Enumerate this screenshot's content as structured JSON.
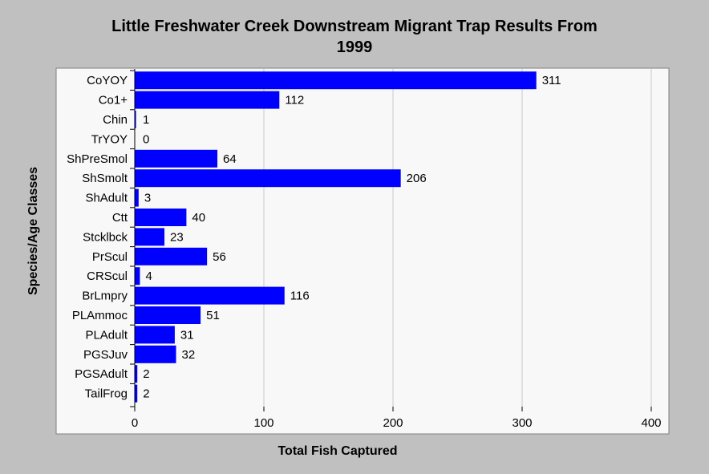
{
  "chart_data": {
    "type": "bar",
    "orientation": "horizontal",
    "title": [
      "Little Freshwater Creek Downstream Migrant Trap Results From",
      "1999"
    ],
    "xlabel": "Total Fish Captured",
    "ylabel": "Species/Age Classes",
    "xlim": [
      0,
      400
    ],
    "xticks": [
      0,
      100,
      200,
      300,
      400
    ],
    "grid": true,
    "legend": "none",
    "categories": [
      "CoYOY",
      "Co1+",
      "Chin",
      "TrYOY",
      "ShPreSmol",
      "ShSmolt",
      "ShAdult",
      "Ctt",
      "Stcklbck",
      "PrScul",
      "CRScul",
      "BrLmpry",
      "PLAmmoc",
      "PLAdult",
      "PGSJuv",
      "PGSAdult",
      "TailFrog"
    ],
    "values": [
      311,
      112,
      1,
      0,
      64,
      206,
      3,
      40,
      23,
      56,
      4,
      116,
      51,
      31,
      32,
      2,
      2
    ],
    "data_labels": [
      "311",
      "112",
      "1",
      "0",
      "64",
      "206",
      "3",
      "40",
      "23",
      "56",
      "4",
      "116",
      "51",
      "31",
      "32",
      "2",
      "2"
    ],
    "colors": {
      "bar": "#0000ff",
      "background": "#c0c0c0",
      "plot_area": "#f8f8f8",
      "grid": "#c8c8c8"
    }
  }
}
